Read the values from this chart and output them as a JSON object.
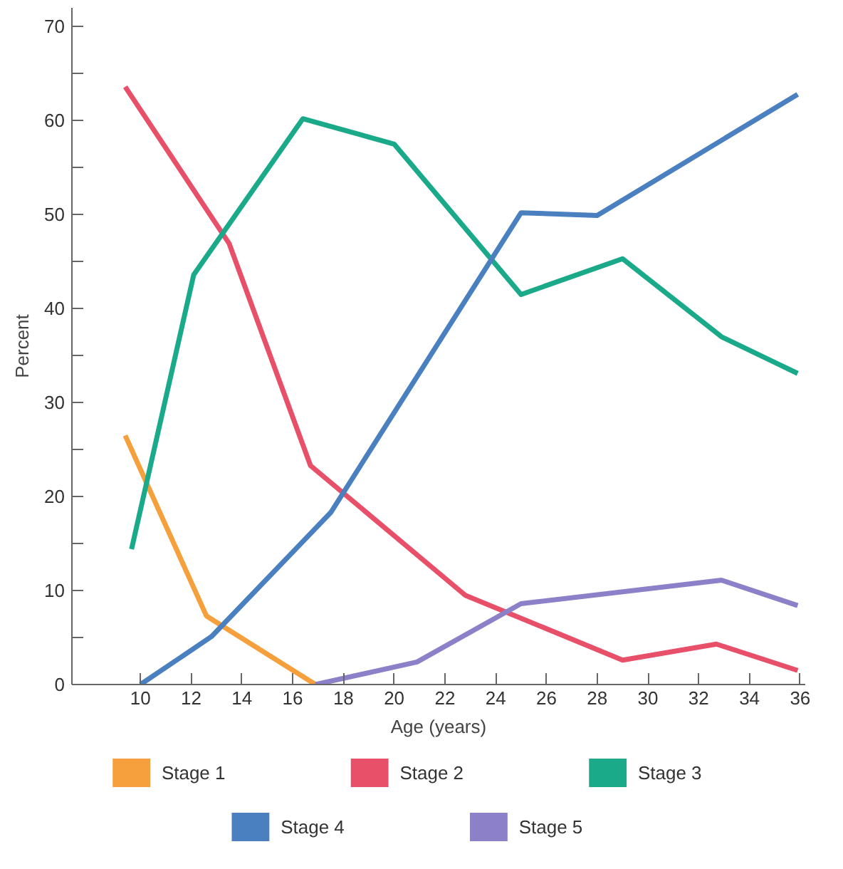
{
  "chart_data": {
    "type": "line",
    "xlabel": "Age (years)",
    "ylabel": "Percent",
    "xlim": [
      7.3,
      36.2
    ],
    "ylim": [
      0,
      72
    ],
    "xticks": [
      10,
      12,
      14,
      16,
      18,
      20,
      22,
      24,
      26,
      28,
      30,
      32,
      34,
      36
    ],
    "yticks": [
      0,
      {
        "value": 5,
        "label": null
      },
      10,
      {
        "value": 15,
        "label": null
      },
      20,
      {
        "value": 25,
        "label": null
      },
      30,
      {
        "value": 35,
        "label": null
      },
      40,
      {
        "value": 45,
        "label": null
      },
      50,
      {
        "value": 55,
        "label": null
      },
      60,
      {
        "value": 65,
        "label": null
      },
      70
    ],
    "grid": false,
    "legend": "bottom",
    "marker": "none",
    "line_style": "solid",
    "series": [
      {
        "name": "Stage 1",
        "color": "#f5a03c",
        "x": [
          9.4,
          12.6,
          16.9
        ],
        "values": [
          26.5,
          7.3,
          0
        ]
      },
      {
        "name": "Stage 2",
        "color": "#e8506a",
        "x": [
          9.4,
          13.5,
          16.7,
          22.8,
          29.0,
          32.7,
          35.9
        ],
        "values": [
          63.6,
          46.9,
          23.3,
          9.5,
          2.6,
          4.3,
          1.5
        ]
      },
      {
        "name": "Stage 3",
        "color": "#1aaa8a",
        "x": [
          9.65,
          12.1,
          16.4,
          20.0,
          25.0,
          29.0,
          32.9,
          35.9
        ],
        "values": [
          14.4,
          43.6,
          60.2,
          57.5,
          41.5,
          45.3,
          37.0,
          33.1
        ]
      },
      {
        "name": "Stage 4",
        "color": "#4a80c0",
        "x": [
          10,
          12.8,
          17.5,
          25.0,
          28.0,
          35.9
        ],
        "values": [
          0,
          5.1,
          18.3,
          50.2,
          49.9,
          62.8
        ]
      },
      {
        "name": "Stage 5",
        "color": "#8c80c8",
        "x": [
          16.9,
          20.9,
          25.0,
          32.9,
          35.9
        ],
        "values": [
          0,
          2.4,
          8.6,
          11.1,
          8.4
        ]
      }
    ]
  }
}
